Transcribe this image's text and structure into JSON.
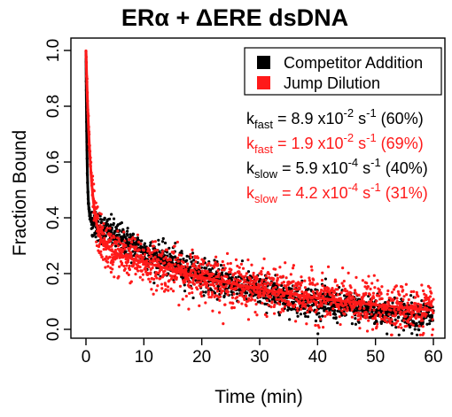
{
  "colors": {
    "competitor": "#000000",
    "jump": "#ff1a1a",
    "axis": "#000000",
    "background": "#ffffff"
  },
  "chart_data": {
    "type": "scatter",
    "title": "ERα + ΔERE dsDNA",
    "xlabel": "Time (min)",
    "ylabel": "Fraction Bound",
    "xlim": [
      0,
      60
    ],
    "ylim": [
      0,
      1.0
    ],
    "xticks": [
      "0",
      "10",
      "20",
      "30",
      "40",
      "50",
      "60"
    ],
    "yticks": [
      "0.0",
      "0.2",
      "0.4",
      "0.6",
      "0.8",
      "1.0"
    ],
    "xtick_values": [
      0,
      10,
      20,
      30,
      40,
      50,
      60
    ],
    "ytick_values": [
      0.0,
      0.2,
      0.4,
      0.6,
      0.8,
      1.0
    ],
    "grid": false,
    "legend_position": "top-right",
    "series": [
      {
        "name": "Competitor Addition",
        "color": "#000000",
        "model": {
          "A": 1.0,
          "f_fast": 0.6,
          "k_fast_per_s": 0.089,
          "f_slow": 0.4,
          "k_slow_per_s": 0.00059
        },
        "points": [
          [
            0.0,
            1.0
          ],
          [
            0.1,
            0.93
          ],
          [
            0.25,
            0.82
          ],
          [
            0.5,
            0.62
          ],
          [
            0.75,
            0.49
          ],
          [
            1.0,
            0.43
          ],
          [
            1.5,
            0.39
          ],
          [
            2,
            0.37
          ],
          [
            3,
            0.355
          ],
          [
            4,
            0.345
          ],
          [
            5,
            0.335
          ],
          [
            7.5,
            0.31
          ],
          [
            10,
            0.29
          ],
          [
            12.5,
            0.275
          ],
          [
            15,
            0.255
          ],
          [
            17.5,
            0.24
          ],
          [
            20,
            0.22
          ],
          [
            22.5,
            0.205
          ],
          [
            25,
            0.19
          ],
          [
            27.5,
            0.18
          ],
          [
            30,
            0.17
          ],
          [
            32.5,
            0.155
          ],
          [
            35,
            0.145
          ],
          [
            37.5,
            0.135
          ],
          [
            40,
            0.125
          ],
          [
            42.5,
            0.115
          ],
          [
            45,
            0.105
          ],
          [
            47.5,
            0.095
          ],
          [
            50,
            0.085
          ],
          [
            52.5,
            0.075
          ],
          [
            55,
            0.07
          ],
          [
            57.5,
            0.06
          ],
          [
            60,
            0.05
          ]
        ]
      },
      {
        "name": "Jump Dilution",
        "color": "#ff1a1a",
        "model": {
          "A": 1.0,
          "f_fast": 0.69,
          "k_fast_per_s": 0.019,
          "f_slow": 0.31,
          "k_slow_per_s": 0.00042
        },
        "points": [
          [
            0.0,
            1.0
          ],
          [
            0.25,
            0.95
          ],
          [
            0.5,
            0.9
          ],
          [
            1.0,
            0.8
          ],
          [
            1.5,
            0.7
          ],
          [
            2,
            0.62
          ],
          [
            3,
            0.5
          ],
          [
            4,
            0.43
          ],
          [
            5,
            0.39
          ],
          [
            6,
            0.365
          ],
          [
            7.5,
            0.345
          ],
          [
            10,
            0.32
          ],
          [
            12.5,
            0.3
          ],
          [
            15,
            0.285
          ],
          [
            17.5,
            0.27
          ],
          [
            20,
            0.255
          ],
          [
            22.5,
            0.245
          ],
          [
            25,
            0.23
          ],
          [
            27.5,
            0.22
          ],
          [
            30,
            0.21
          ],
          [
            32.5,
            0.2
          ],
          [
            35,
            0.19
          ],
          [
            37.5,
            0.18
          ],
          [
            40,
            0.17
          ],
          [
            42.5,
            0.16
          ],
          [
            45,
            0.15
          ],
          [
            47.5,
            0.14
          ],
          [
            50,
            0.13
          ],
          [
            52.5,
            0.12
          ],
          [
            55,
            0.11
          ],
          [
            57.5,
            0.105
          ],
          [
            60,
            0.095
          ]
        ]
      }
    ],
    "legend": [
      {
        "label": "Competitor Addition",
        "color": "#000000"
      },
      {
        "label": "Jump Dilution",
        "color": "#ff1a1a"
      }
    ],
    "annotations": [
      {
        "k": "k",
        "sub": "fast",
        "eq": " = 8.9 x10",
        "exp": "-2",
        "unit": " s",
        "unitexp": "-1",
        "pct": " (60%)",
        "color": "#000000"
      },
      {
        "k": "k",
        "sub": "fast",
        "eq": " = 1.9 x10",
        "exp": "-2",
        "unit": " s",
        "unitexp": "-1",
        "pct": " (69%)",
        "color": "#ff1a1a"
      },
      {
        "k": "k",
        "sub": "slow",
        "eq": " = 5.9 x10",
        "exp": "-4",
        "unit": " s",
        "unitexp": "-1",
        "pct": " (40%)",
        "color": "#000000"
      },
      {
        "k": "k",
        "sub": "slow",
        "eq": " = 4.2 x10",
        "exp": "-4",
        "unit": " s",
        "unitexp": "-1",
        "pct": " (31%)",
        "color": "#ff1a1a"
      }
    ]
  }
}
